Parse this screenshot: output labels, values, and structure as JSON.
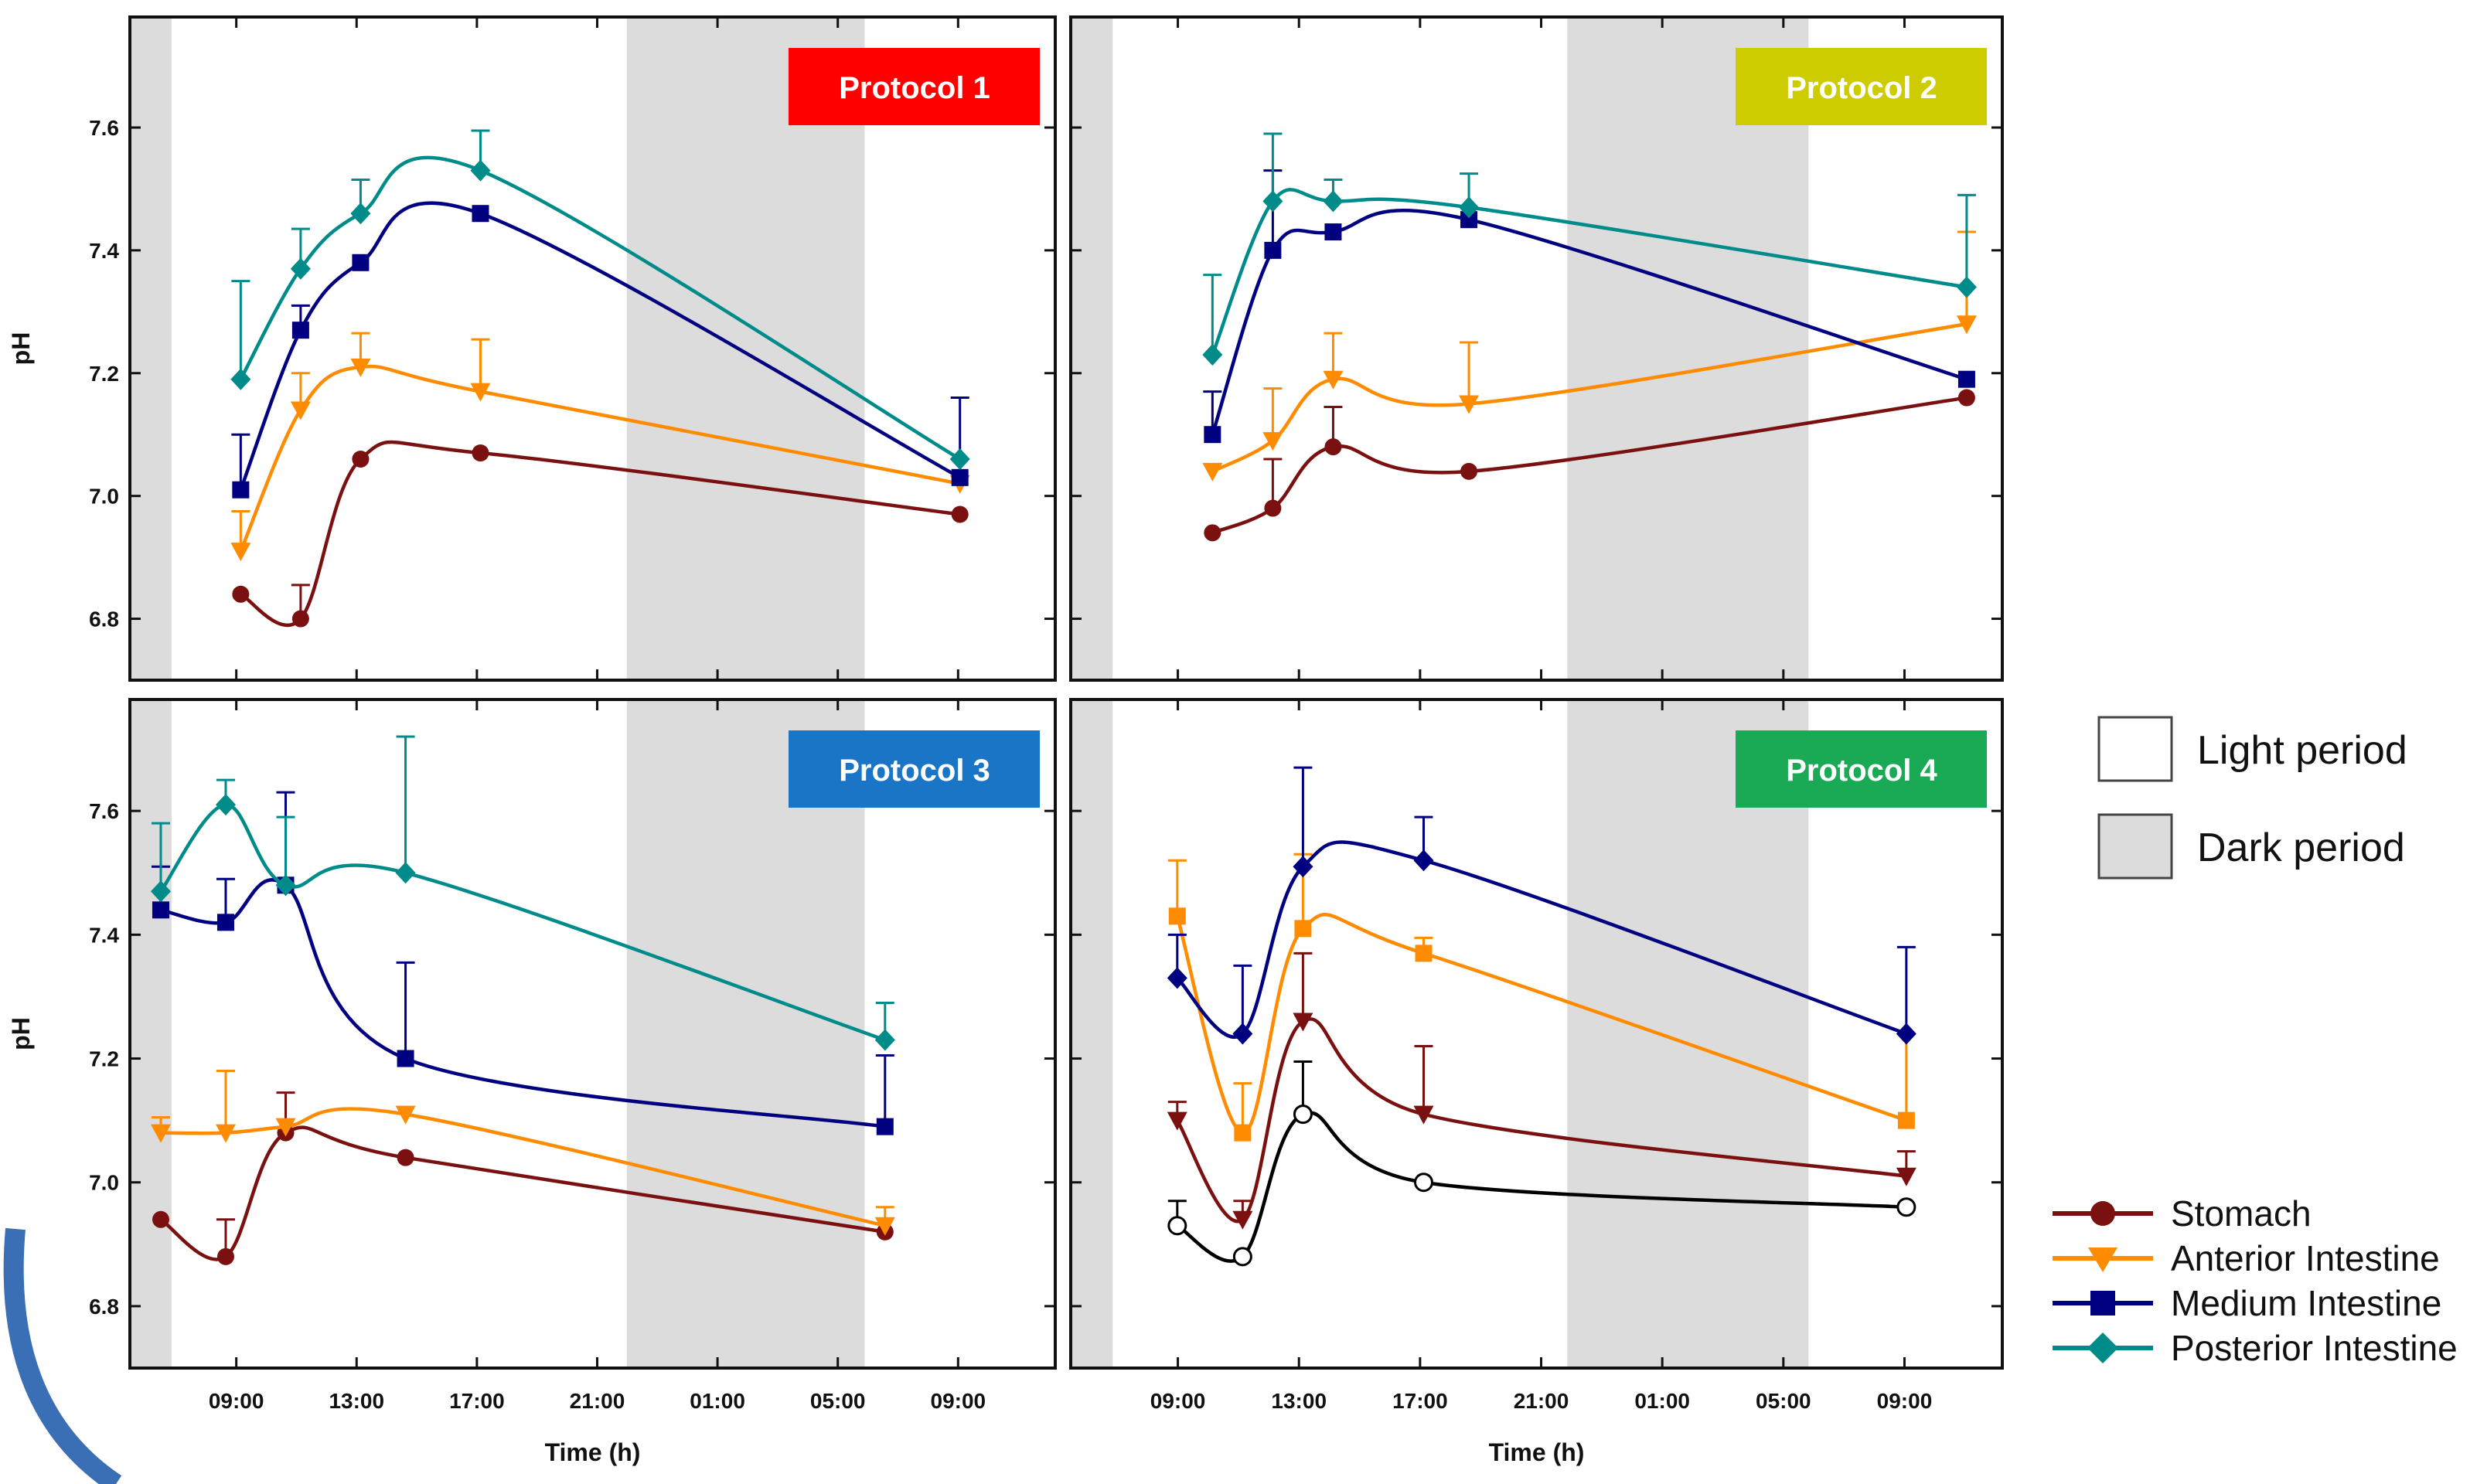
{
  "figure": {
    "ylabel": "pH",
    "xlabel": "Time (h)",
    "legend_periods": [
      {
        "label": "Light period",
        "color": "#ffffff"
      },
      {
        "label": "Dark period",
        "color": "#dcdcdc"
      }
    ],
    "legend_series": [
      {
        "label": "Stomach",
        "color": "#7b1010",
        "marker": "circle"
      },
      {
        "label": "Anterior Intestine",
        "color": "#ff8c00",
        "marker": "triangle-down"
      },
      {
        "label": "Medium Intestine",
        "color": "#000080",
        "marker": "square"
      },
      {
        "label": "Posterior Intestine",
        "color": "#008b8b",
        "marker": "diamond"
      }
    ]
  },
  "chart_data": [
    {
      "type": "line",
      "title": "Protocol 1",
      "title_color": "#ff0000",
      "xlabel": "",
      "ylabel": "pH",
      "x_tick_labels": [
        "09:00",
        "13:00",
        "17:00",
        "21:00",
        "01:00",
        "05:00",
        "09:00"
      ],
      "y_tick_labels": [
        "6.8",
        "7.0",
        "7.2",
        "7.4",
        "7.6"
      ],
      "ylim": [
        6.7,
        7.78
      ],
      "shading": "dark 07:00–09:00 and 19:30–08:30",
      "series": [
        {
          "name": "Stomach",
          "color": "#7b1010",
          "marker": "circle",
          "x": [
            "09:00",
            "11:00",
            "13:00",
            "17:00",
            "09:00"
          ],
          "y": [
            6.84,
            6.8,
            7.06,
            7.07,
            6.97
          ],
          "err": [
            0,
            0.055,
            0,
            0,
            0
          ]
        },
        {
          "name": "Anterior Intestine",
          "color": "#ff8c00",
          "marker": "triangle-down",
          "x": [
            "09:00",
            "11:00",
            "13:00",
            "17:00",
            "09:00"
          ],
          "y": [
            6.91,
            7.14,
            7.21,
            7.17,
            7.02
          ],
          "err": [
            0.065,
            0.06,
            0.055,
            0.085,
            0
          ]
        },
        {
          "name": "Medium Intestine",
          "color": "#000080",
          "marker": "square",
          "x": [
            "09:00",
            "11:00",
            "13:00",
            "17:00",
            "09:00"
          ],
          "y": [
            7.01,
            7.27,
            7.38,
            7.46,
            7.03
          ],
          "err": [
            0.09,
            0.04,
            0,
            0,
            0.13
          ]
        },
        {
          "name": "Posterior Intestine",
          "color": "#008b8b",
          "marker": "diamond",
          "x": [
            "09:00",
            "11:00",
            "13:00",
            "17:00",
            "09:00"
          ],
          "y": [
            7.19,
            7.37,
            7.46,
            7.53,
            7.06
          ],
          "err": [
            0.16,
            0.065,
            0.055,
            0.065,
            0
          ]
        }
      ]
    },
    {
      "type": "line",
      "title": "Protocol 2",
      "title_color": "#cccc00",
      "xlabel": "",
      "ylabel": "",
      "x_tick_labels": [
        "09:00",
        "13:00",
        "17:00",
        "21:00",
        "01:00",
        "05:00",
        "09:00"
      ],
      "y_tick_labels": [],
      "ylim": [
        6.7,
        7.78
      ],
      "shading": "dark 07:00–08:30 and 19:30–08:30",
      "series": [
        {
          "name": "Stomach",
          "color": "#7b1010",
          "marker": "circle",
          "x": [
            "10:00",
            "12:00",
            "14:00",
            "18:30",
            "11:00"
          ],
          "y": [
            6.94,
            6.98,
            7.08,
            7.04,
            7.16
          ],
          "err": [
            0,
            0.08,
            0.065,
            0,
            0
          ]
        },
        {
          "name": "Anterior Intestine",
          "color": "#ff8c00",
          "marker": "triangle-down",
          "x": [
            "10:00",
            "12:00",
            "14:00",
            "18:30",
            "11:00"
          ],
          "y": [
            7.04,
            7.09,
            7.19,
            7.15,
            7.28
          ],
          "err": [
            0,
            0.085,
            0.075,
            0.1,
            0.15
          ]
        },
        {
          "name": "Medium Intestine",
          "color": "#000080",
          "marker": "square",
          "x": [
            "10:00",
            "12:00",
            "14:00",
            "18:30",
            "11:00"
          ],
          "y": [
            7.1,
            7.4,
            7.43,
            7.45,
            7.19
          ],
          "err": [
            0.07,
            0.13,
            0,
            0,
            0
          ]
        },
        {
          "name": "Posterior Intestine",
          "color": "#008b8b",
          "marker": "diamond",
          "x": [
            "10:00",
            "12:00",
            "14:00",
            "18:30",
            "11:00"
          ],
          "y": [
            7.23,
            7.48,
            7.48,
            7.47,
            7.34
          ],
          "err": [
            0.13,
            0.11,
            0.035,
            0.055,
            0.15
          ]
        }
      ]
    },
    {
      "type": "line",
      "title": "Protocol 3",
      "title_color": "#1a75c7",
      "xlabel": "Time (h)",
      "ylabel": "pH",
      "x_tick_labels": [
        "09:00",
        "13:00",
        "17:00",
        "21:00",
        "01:00",
        "05:00",
        "09:00"
      ],
      "y_tick_labels": [
        "6.8",
        "7.0",
        "7.2",
        "7.4",
        "7.6"
      ],
      "ylim": [
        6.7,
        7.78
      ],
      "shading": "dark 07:00–08:50 and 19:30–08:30",
      "series": [
        {
          "name": "Stomach",
          "color": "#7b1010",
          "marker": "circle",
          "x": [
            "06:20",
            "08:30",
            "10:30",
            "14:30",
            "06:30"
          ],
          "y": [
            6.94,
            6.88,
            7.08,
            7.04,
            6.92
          ],
          "err": [
            0,
            0.06,
            0.065,
            0,
            0
          ]
        },
        {
          "name": "Anterior Intestine",
          "color": "#ff8c00",
          "marker": "triangle-down",
          "x": [
            "06:20",
            "08:30",
            "10:30",
            "14:30",
            "06:30"
          ],
          "y": [
            7.08,
            7.08,
            7.09,
            7.11,
            6.93
          ],
          "err": [
            0.025,
            0.1,
            0,
            0,
            0.03
          ]
        },
        {
          "name": "Medium Intestine",
          "color": "#000080",
          "marker": "square",
          "x": [
            "06:20",
            "08:30",
            "10:30",
            "14:30",
            "06:30"
          ],
          "y": [
            7.44,
            7.42,
            7.48,
            7.2,
            7.09
          ],
          "err": [
            0.07,
            0.07,
            0.15,
            0.155,
            0.115
          ]
        },
        {
          "name": "Posterior Intestine",
          "color": "#008b8b",
          "marker": "diamond",
          "x": [
            "06:20",
            "08:30",
            "10:30",
            "14:30",
            "06:30"
          ],
          "y": [
            7.47,
            7.61,
            7.48,
            7.5,
            7.23
          ],
          "err": [
            0.11,
            0.04,
            0.11,
            0.22,
            0.06
          ]
        }
      ]
    },
    {
      "type": "line",
      "title": "Protocol 4",
      "title_color": "#1aaa55",
      "xlabel": "Time (h)",
      "ylabel": "",
      "x_tick_labels": [
        "09:00",
        "13:00",
        "17:00",
        "21:00",
        "01:00",
        "05:00",
        "09:00"
      ],
      "y_tick_labels": [],
      "ylim": [
        6.7,
        7.78
      ],
      "shading": "dark 07:00–08:30 and 19:30–08:30",
      "series": [
        {
          "name": "",
          "color": "#000000",
          "marker": "circle-open",
          "x": [
            "08:50",
            "11:00",
            "13:00",
            "17:00",
            "09:00"
          ],
          "y": [
            6.93,
            6.88,
            7.11,
            7.0,
            6.96
          ],
          "err": [
            0.04,
            0,
            0.085,
            0,
            0
          ]
        },
        {
          "name": "Stomach",
          "color": "#7b1010",
          "marker": "triangle-down",
          "x": [
            "08:50",
            "11:00",
            "13:00",
            "17:00",
            "09:00"
          ],
          "y": [
            7.1,
            6.94,
            7.26,
            7.11,
            7.01
          ],
          "err": [
            0.03,
            0.03,
            0.11,
            0.11,
            0.04
          ]
        },
        {
          "name": "Anterior Intestine",
          "color": "#ff8c00",
          "marker": "square",
          "x": [
            "08:50",
            "11:00",
            "13:00",
            "17:00",
            "09:00"
          ],
          "y": [
            7.43,
            7.08,
            7.41,
            7.37,
            7.1
          ],
          "err": [
            0.09,
            0.08,
            0.12,
            0.025,
            0.14
          ]
        },
        {
          "name": "Medium Intestine",
          "color": "#000080",
          "marker": "diamond",
          "x": [
            "08:50",
            "11:00",
            "13:00",
            "17:00",
            "09:00"
          ],
          "y": [
            7.33,
            7.24,
            7.51,
            7.52,
            7.24
          ],
          "err": [
            0.07,
            0.11,
            0.16,
            0.07,
            0.14
          ]
        }
      ]
    }
  ]
}
